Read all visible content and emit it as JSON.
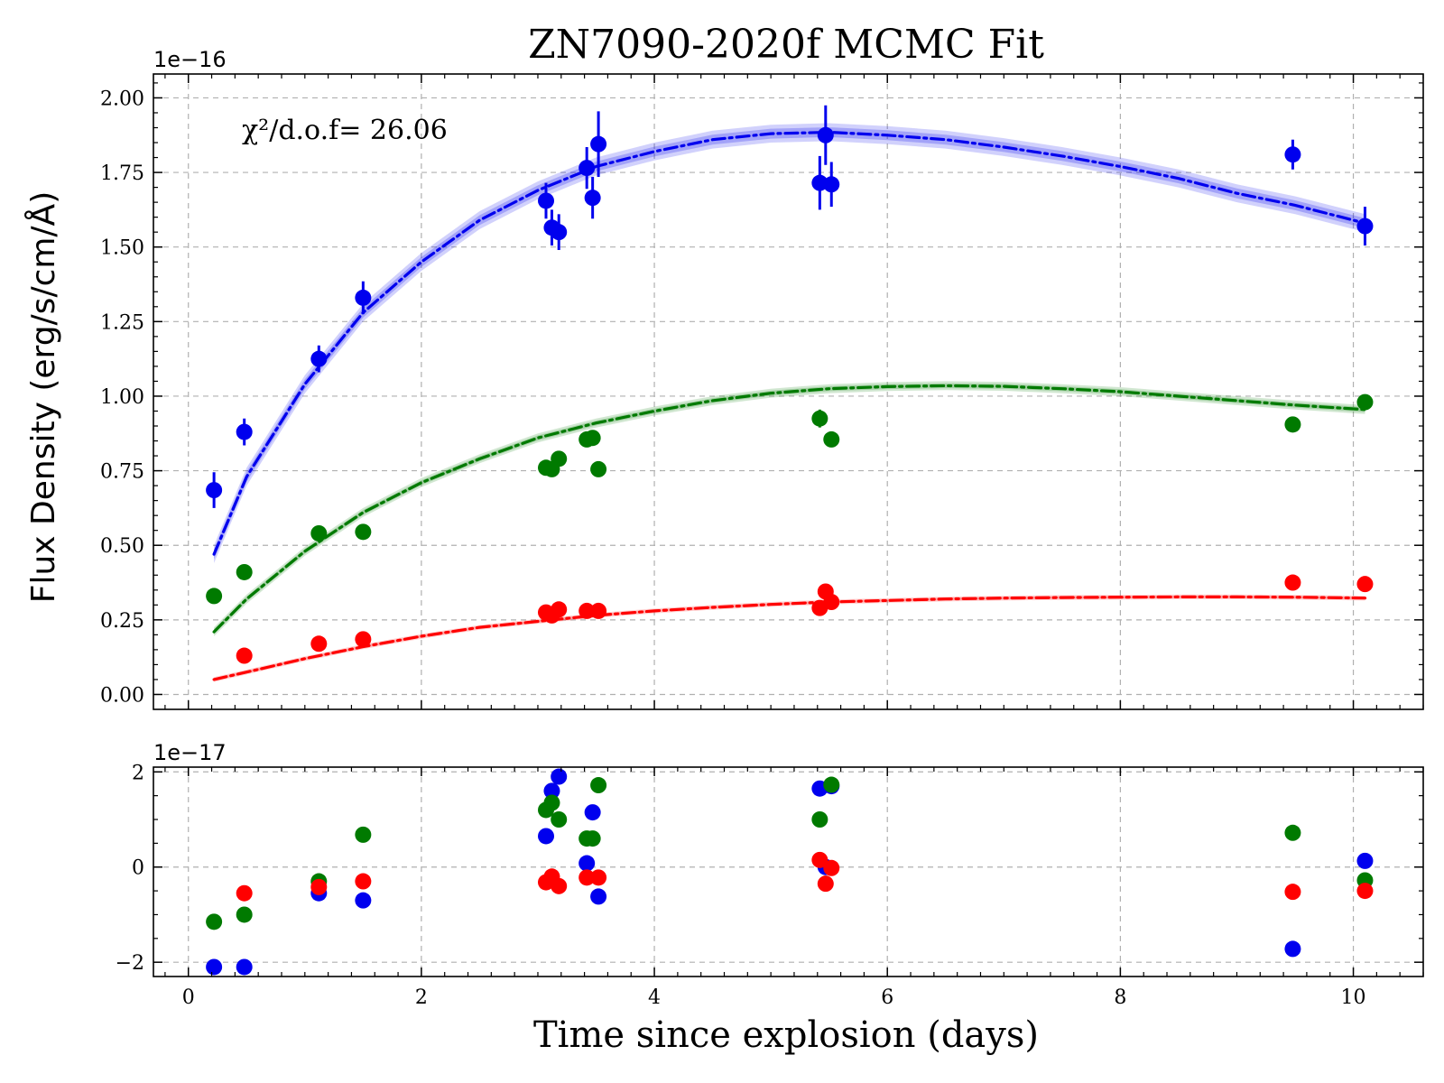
{
  "chart_data": {
    "type": "scatter",
    "title": "ZN7090-2020f MCMC Fit",
    "xlabel": "Time since explosion (days)",
    "ylabel": "Flux Density (erg/s/cm/Å)",
    "annotation": "χ²/d.o.f= 26.06",
    "grid": true,
    "colors": {
      "blue": "#0000ee",
      "green": "#007a00",
      "red": "#ff0000"
    },
    "main_panel": {
      "offset_label": "1e−16",
      "xlim": [
        -0.3,
        10.6
      ],
      "ylim": [
        -0.05,
        2.08
      ],
      "yticks": [
        0.0,
        0.25,
        0.5,
        0.75,
        1.0,
        1.25,
        1.5,
        1.75,
        2.0
      ],
      "ytick_labels": [
        "0.00",
        "0.25",
        "0.50",
        "0.75",
        "1.00",
        "1.25",
        "1.50",
        "1.75",
        "2.00"
      ],
      "series": [
        {
          "color": "#0000ee",
          "x": [
            0.22,
            0.48,
            1.12,
            1.5,
            3.07,
            3.12,
            3.18,
            3.42,
            3.47,
            3.52,
            5.42,
            5.47,
            5.52,
            9.48,
            10.1
          ],
          "y": [
            0.685,
            0.88,
            1.125,
            1.33,
            1.655,
            1.565,
            1.55,
            1.765,
            1.665,
            1.845,
            1.715,
            1.875,
            1.71,
            1.81,
            1.57
          ],
          "yerr": [
            0.06,
            0.045,
            0.045,
            0.055,
            0.06,
            0.06,
            0.06,
            0.07,
            0.07,
            0.11,
            0.09,
            0.1,
            0.075,
            0.05,
            0.065
          ],
          "model_x": [
            0.22,
            0.5,
            1.0,
            1.5,
            2.0,
            2.5,
            3.0,
            3.5,
            4.0,
            4.5,
            5.0,
            5.5,
            6.0,
            6.5,
            7.0,
            7.5,
            8.0,
            8.5,
            9.0,
            9.5,
            10.1
          ],
          "model_y": [
            0.47,
            0.73,
            1.04,
            1.28,
            1.45,
            1.59,
            1.69,
            1.77,
            1.82,
            1.86,
            1.88,
            1.885,
            1.875,
            1.86,
            1.835,
            1.805,
            1.77,
            1.73,
            1.68,
            1.64,
            1.58
          ],
          "band": 0.03
        },
        {
          "color": "#007a00",
          "x": [
            0.22,
            0.48,
            1.12,
            1.5,
            3.07,
            3.12,
            3.18,
            3.42,
            3.47,
            3.52,
            5.42,
            5.52,
            9.48,
            10.1
          ],
          "y": [
            0.33,
            0.41,
            0.54,
            0.545,
            0.76,
            0.755,
            0.79,
            0.855,
            0.86,
            0.755,
            0.925,
            0.855,
            0.905,
            0.98
          ],
          "yerr": [
            0.02,
            0.02,
            0.02,
            0.02,
            0.02,
            0.02,
            0.02,
            0.02,
            0.02,
            0.02,
            0.03,
            0.02,
            0.02,
            0.02
          ],
          "model_x": [
            0.22,
            0.5,
            1.0,
            1.5,
            2.0,
            2.5,
            3.0,
            3.5,
            4.0,
            4.5,
            5.0,
            5.5,
            6.0,
            6.5,
            7.0,
            7.5,
            8.0,
            8.5,
            9.0,
            9.5,
            10.1
          ],
          "model_y": [
            0.21,
            0.32,
            0.48,
            0.61,
            0.71,
            0.79,
            0.86,
            0.91,
            0.95,
            0.985,
            1.01,
            1.025,
            1.032,
            1.035,
            1.033,
            1.025,
            1.015,
            1.0,
            0.985,
            0.97,
            0.955
          ],
          "band": 0.015
        },
        {
          "color": "#ff0000",
          "x": [
            0.48,
            1.12,
            1.5,
            3.07,
            3.12,
            3.18,
            3.42,
            3.52,
            5.42,
            5.47,
            5.52,
            9.48,
            10.1
          ],
          "y": [
            0.13,
            0.17,
            0.185,
            0.275,
            0.265,
            0.285,
            0.28,
            0.28,
            0.29,
            0.345,
            0.31,
            0.375,
            0.37
          ],
          "yerr": [
            0.01,
            0.01,
            0.01,
            0.01,
            0.01,
            0.01,
            0.01,
            0.01,
            0.01,
            0.01,
            0.01,
            0.01,
            0.01
          ],
          "model_x": [
            0.22,
            0.5,
            1.0,
            1.5,
            2.0,
            2.5,
            3.0,
            3.5,
            4.0,
            4.5,
            5.0,
            5.5,
            6.0,
            6.5,
            7.0,
            7.5,
            8.0,
            8.5,
            9.0,
            9.5,
            10.1
          ],
          "model_y": [
            0.05,
            0.075,
            0.12,
            0.16,
            0.195,
            0.225,
            0.245,
            0.265,
            0.28,
            0.292,
            0.302,
            0.31,
            0.315,
            0.32,
            0.323,
            0.325,
            0.326,
            0.327,
            0.327,
            0.326,
            0.323
          ],
          "band": 0.008
        }
      ]
    },
    "residual_panel": {
      "offset_label": "1e−17",
      "xlim": [
        -0.3,
        10.6
      ],
      "ylim": [
        -2.3,
        2.1
      ],
      "yticks": [
        -2,
        0,
        2
      ],
      "ytick_labels": [
        "−2",
        "0",
        "2"
      ],
      "xticks": [
        0,
        2,
        4,
        6,
        8,
        10
      ],
      "xtick_labels": [
        "0",
        "2",
        "4",
        "6",
        "8",
        "10"
      ],
      "series": [
        {
          "color": "#0000ee",
          "x": [
            0.22,
            0.48,
            1.12,
            1.5,
            3.07,
            3.12,
            3.18,
            3.42,
            3.47,
            3.52,
            5.42,
            5.47,
            5.52,
            9.48,
            10.1
          ],
          "y": [
            -2.1,
            -2.1,
            -0.55,
            -0.7,
            0.65,
            1.6,
            1.9,
            0.08,
            1.15,
            -0.62,
            1.65,
            0.0,
            1.7,
            -1.72,
            0.13
          ]
        },
        {
          "color": "#007a00",
          "x": [
            0.22,
            0.48,
            1.12,
            1.5,
            3.07,
            3.12,
            3.18,
            3.42,
            3.47,
            3.52,
            5.42,
            5.52,
            9.48,
            10.1
          ],
          "y": [
            -1.15,
            -1.0,
            -0.3,
            0.68,
            1.2,
            1.35,
            1.0,
            0.6,
            0.6,
            1.72,
            1.0,
            1.73,
            0.72,
            -0.28
          ]
        },
        {
          "color": "#ff0000",
          "x": [
            0.48,
            1.12,
            1.5,
            3.07,
            3.12,
            3.18,
            3.42,
            3.52,
            5.42,
            5.47,
            5.52,
            9.48,
            10.1
          ],
          "y": [
            -0.55,
            -0.42,
            -0.3,
            -0.32,
            -0.2,
            -0.4,
            -0.22,
            -0.22,
            0.15,
            -0.35,
            -0.02,
            -0.52,
            -0.5
          ]
        }
      ]
    }
  }
}
